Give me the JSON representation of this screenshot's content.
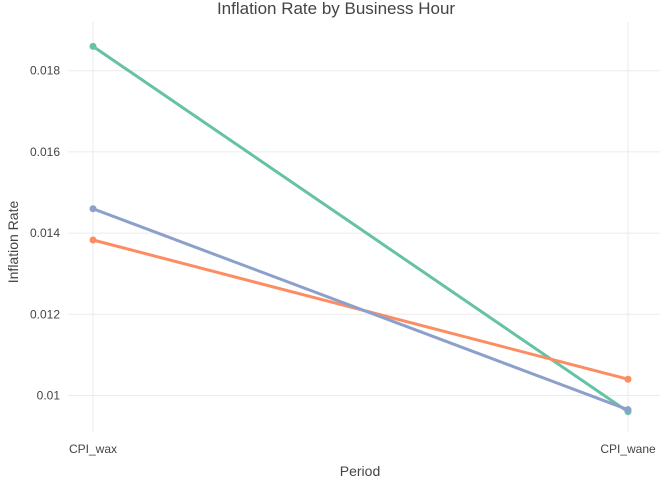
{
  "chart_data": {
    "type": "line",
    "title": "Inflation Rate by Business Hour",
    "xlabel": "Period",
    "ylabel": "Inflation Rate",
    "x": [
      "CPI_wax",
      "CPI_wane"
    ],
    "ylim": [
      0.0091,
      0.0192
    ],
    "yticks": [
      0.01,
      0.012,
      0.014,
      0.016,
      0.018
    ],
    "ytick_labels": [
      "0.01",
      "0.012",
      "0.014",
      "0.016",
      "0.018"
    ],
    "grid": true,
    "legend": "none",
    "series": [
      {
        "values": [
          0.0186,
          0.0096
        ],
        "color": "#66c2a5"
      },
      {
        "values": [
          0.01383,
          0.0104
        ],
        "color": "#fc8d62"
      },
      {
        "values": [
          0.0146,
          0.00965
        ],
        "color": "#8da0cb"
      }
    ]
  }
}
